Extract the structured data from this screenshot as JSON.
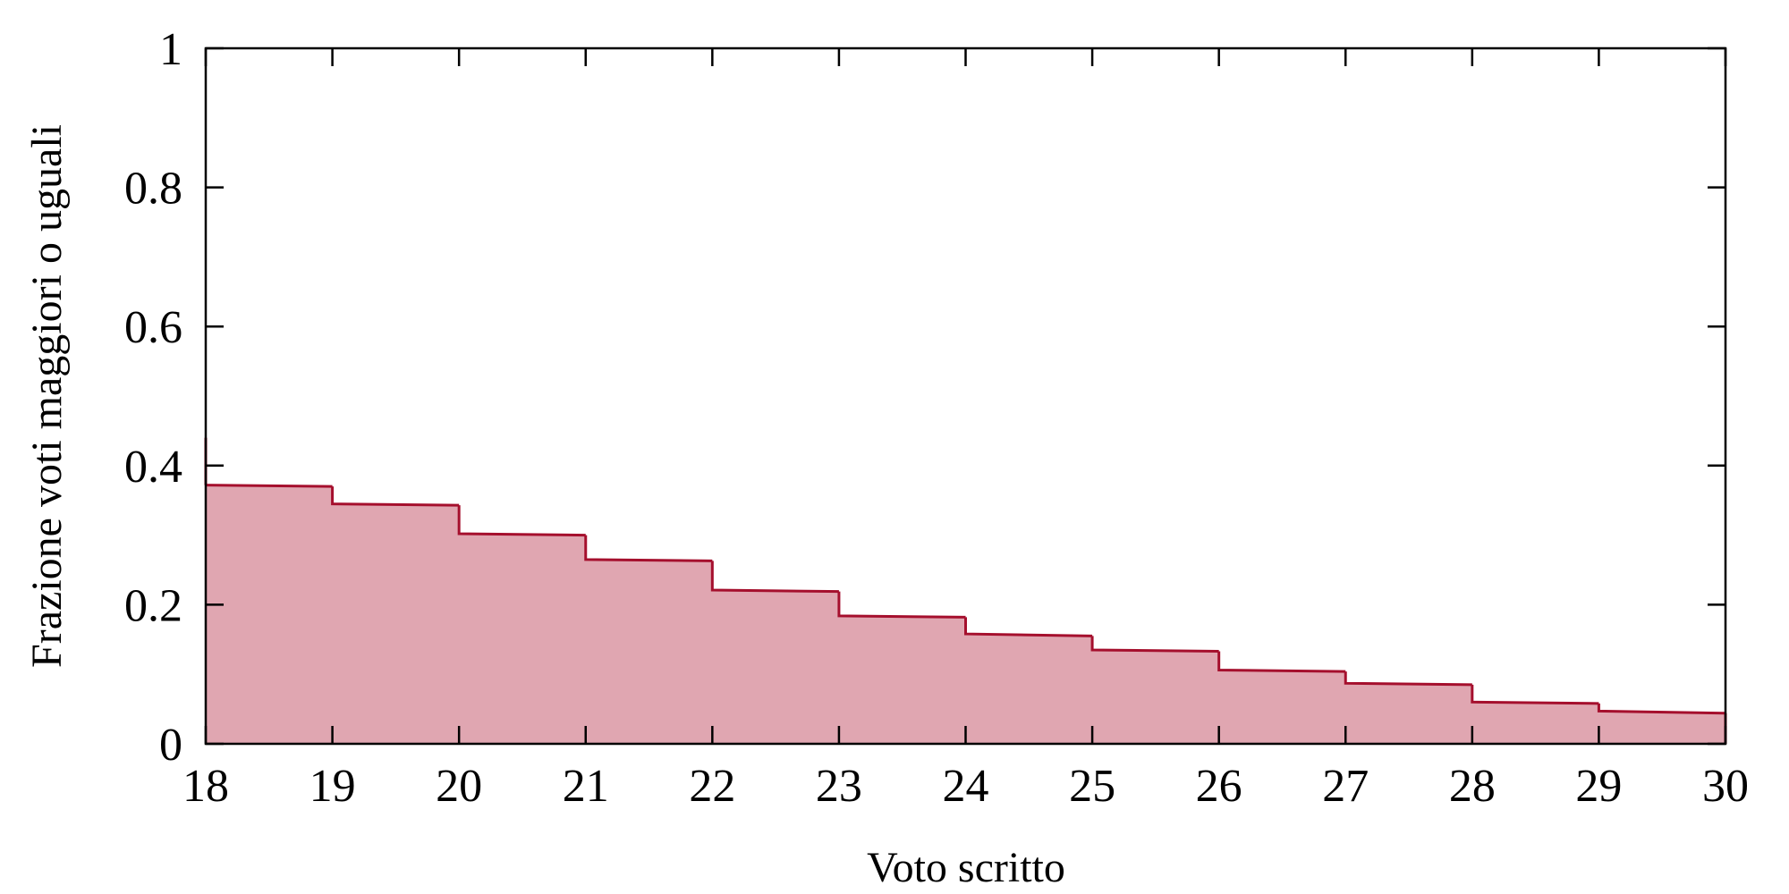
{
  "chart_data": {
    "type": "area",
    "step": true,
    "title": "",
    "xlabel": "Voto scritto",
    "ylabel": "Frazione voti maggiori o uguali",
    "xlim": [
      18,
      30
    ],
    "ylim": [
      0,
      1
    ],
    "xticks": [
      "18",
      "19",
      "20",
      "21",
      "22",
      "23",
      "24",
      "25",
      "26",
      "27",
      "28",
      "29",
      "30"
    ],
    "yticks": [
      "0",
      "0.2",
      "0.4",
      "0.6",
      "0.8",
      "1"
    ],
    "grid": false,
    "legend": "none",
    "colors": {
      "line": "#a50f2d",
      "fill": "#e0a6b1"
    },
    "series": [
      {
        "segments": [
          {
            "x0": 18,
            "x1": 19,
            "y0": 0.372,
            "y1": 0.37
          },
          {
            "x0": 19,
            "x1": 20,
            "y0": 0.345,
            "y1": 0.343
          },
          {
            "x0": 20,
            "x1": 21,
            "y0": 0.302,
            "y1": 0.3
          },
          {
            "x0": 21,
            "x1": 22,
            "y0": 0.265,
            "y1": 0.263
          },
          {
            "x0": 22,
            "x1": 23,
            "y0": 0.221,
            "y1": 0.219
          },
          {
            "x0": 23,
            "x1": 24,
            "y0": 0.184,
            "y1": 0.182
          },
          {
            "x0": 24,
            "x1": 25,
            "y0": 0.158,
            "y1": 0.155
          },
          {
            "x0": 25,
            "x1": 26,
            "y0": 0.135,
            "y1": 0.133
          },
          {
            "x0": 26,
            "x1": 27,
            "y0": 0.106,
            "y1": 0.104
          },
          {
            "x0": 27,
            "x1": 28,
            "y0": 0.087,
            "y1": 0.085
          },
          {
            "x0": 28,
            "x1": 29,
            "y0": 0.06,
            "y1": 0.058
          },
          {
            "x0": 29,
            "x1": 30,
            "y0": 0.047,
            "y1": 0.044
          }
        ],
        "start_spike": 0.44
      }
    ]
  }
}
